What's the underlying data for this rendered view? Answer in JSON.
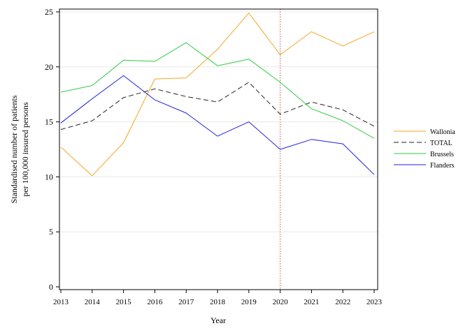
{
  "chart_data": {
    "type": "line",
    "xlabel": "Year",
    "ylabel": [
      "Standardised number of patients",
      "per 100,000 insured persons"
    ],
    "x": [
      2013,
      2014,
      2015,
      2016,
      2017,
      2018,
      2019,
      2020,
      2021,
      2022,
      2023
    ],
    "xlim": [
      2013,
      2023
    ],
    "ylim": [
      0,
      25
    ],
    "y_ticks": [
      0,
      5,
      10,
      15,
      20,
      25
    ],
    "grid": "horizontal",
    "legend_position": "right",
    "reference_line": {
      "x": 2020,
      "color": "#c0504d",
      "style": "dotted"
    },
    "series": [
      {
        "name": "Wallonia",
        "color": "#f5a623",
        "dash": "solid",
        "values": [
          12.7,
          10.1,
          13.1,
          18.9,
          19.0,
          21.6,
          24.9,
          21.1,
          23.2,
          21.9,
          23.2
        ]
      },
      {
        "name": "TOTAL",
        "color": "#222222",
        "dash": "dashed",
        "values": [
          14.3,
          15.1,
          17.2,
          18.0,
          17.3,
          16.8,
          18.6,
          15.7,
          16.8,
          16.1,
          14.6
        ]
      },
      {
        "name": "Brussels",
        "color": "#2ecc40",
        "dash": "solid",
        "values": [
          17.7,
          18.3,
          20.6,
          20.5,
          22.2,
          20.1,
          20.7,
          18.6,
          16.2,
          15.1,
          13.5
        ]
      },
      {
        "name": "Flanders",
        "color": "#1f1fe0",
        "dash": "solid",
        "values": [
          14.9,
          17.1,
          19.2,
          17.0,
          15.8,
          13.7,
          15.0,
          12.5,
          13.4,
          13.0,
          10.2
        ]
      }
    ]
  }
}
